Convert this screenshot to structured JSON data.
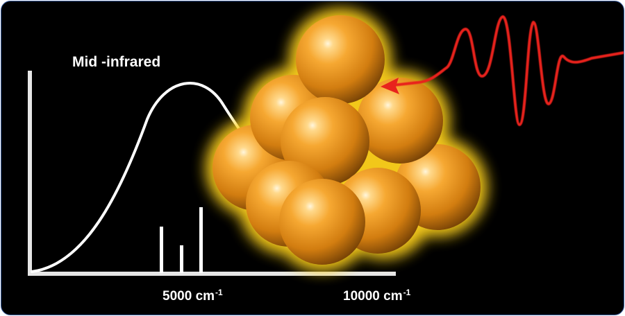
{
  "figure": {
    "title": "Mid -infrared",
    "x_ticks": [
      {
        "value": "5000",
        "unit": "cm",
        "exponent": "-1"
      },
      {
        "value": "10000",
        "unit": "cm",
        "exponent": "-1"
      }
    ]
  },
  "colors": {
    "background": "#000000",
    "border": "#3a5ea0",
    "curve": "#ffffff",
    "sphere_gold": "#f3a12c",
    "glow": "#ffd21a",
    "pulse": "#e8231d"
  },
  "icons": {
    "cluster": "gold-nanocluster-icon",
    "pulse": "light-pulse-icon",
    "arrow": "arrow-left-icon"
  }
}
